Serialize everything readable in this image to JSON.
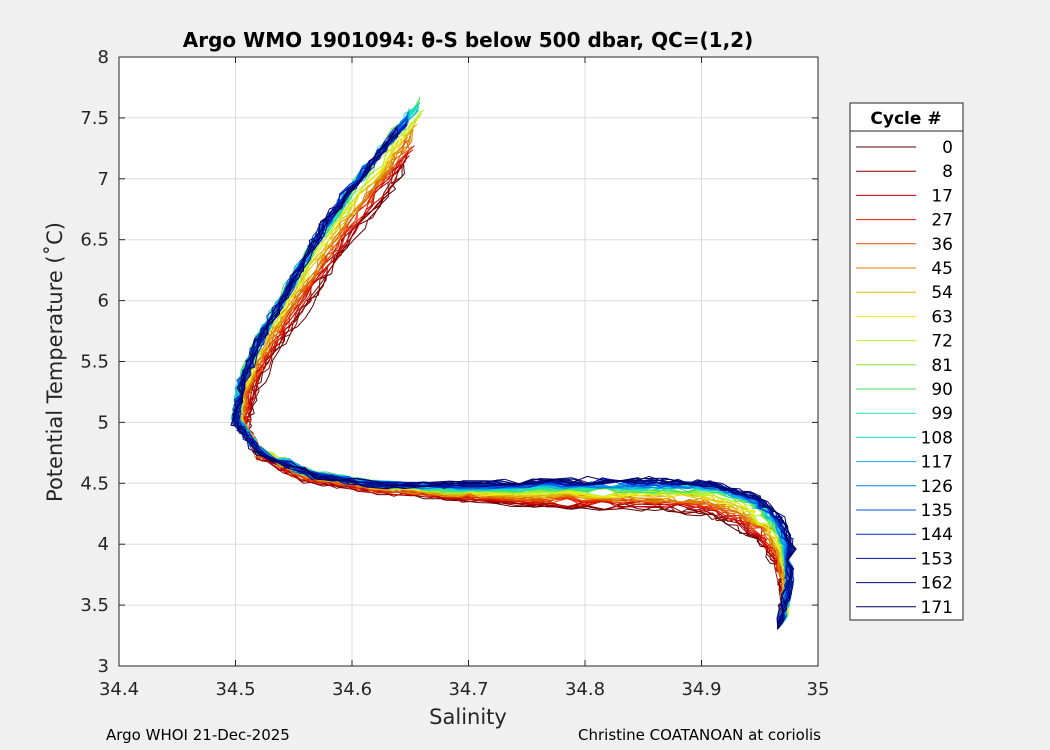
{
  "chart_data": {
    "type": "line",
    "title": "Argo WMO 1901094: θ-S below 500 dbar,  QC=(1,2)",
    "xlabel": "Salinity",
    "ylabel": "Potential Temperature (˚C)",
    "xlim": [
      34.4,
      35
    ],
    "ylim": [
      3,
      8
    ],
    "xticks": [
      "34.4",
      "34.5",
      "34.6",
      "34.7",
      "34.8",
      "34.9",
      "35"
    ],
    "yticks": [
      "3",
      "3.5",
      "4",
      "4.5",
      "5",
      "5.5",
      "6",
      "6.5",
      "7",
      "7.5",
      "8"
    ],
    "grid": true,
    "legend": {
      "title": "Cycle #",
      "placement": "outside-right",
      "entries": [
        "0",
        "8",
        "17",
        "27",
        "36",
        "45",
        "54",
        "63",
        "72",
        "81",
        "90",
        "99",
        "108",
        "117",
        "126",
        "135",
        "144",
        "153",
        "162",
        "171"
      ],
      "colors": [
        "#5a0000",
        "#8a0000",
        "#c00000",
        "#e21a00",
        "#e84a00",
        "#d98000",
        "#e0b800",
        "#ecec10",
        "#b4f030",
        "#7cea3c",
        "#40e060",
        "#20e8a0",
        "#10d8d8",
        "#10b0f0",
        "#0080f0",
        "#0050e0",
        "#0028c8",
        "#0010a0",
        "#000878",
        "#000060"
      ]
    },
    "series_representative": [
      {
        "name": "0",
        "x": [
          34.645,
          34.63,
          34.6,
          34.575,
          34.55,
          34.53,
          34.515,
          34.51,
          34.52,
          34.56,
          34.62,
          34.68,
          34.74,
          34.8,
          34.86,
          34.9,
          34.93,
          34.95,
          34.965,
          34.97,
          34.968
        ],
        "y": [
          7.1,
          6.85,
          6.5,
          6.15,
          5.8,
          5.5,
          5.2,
          4.95,
          4.7,
          4.52,
          4.43,
          4.38,
          4.33,
          4.3,
          4.3,
          4.25,
          4.15,
          4.0,
          3.8,
          3.6,
          3.35
        ]
      },
      {
        "name": "90",
        "x": [
          34.66,
          34.63,
          34.6,
          34.57,
          34.545,
          34.52,
          34.505,
          34.5,
          34.52,
          34.56,
          34.62,
          34.68,
          34.74,
          34.8,
          34.86,
          34.91,
          34.94,
          34.96,
          34.972,
          34.975,
          34.97
        ],
        "y": [
          7.65,
          7.3,
          6.9,
          6.5,
          6.1,
          5.7,
          5.35,
          5.05,
          4.78,
          4.6,
          4.5,
          4.45,
          4.45,
          4.45,
          4.45,
          4.45,
          4.35,
          4.2,
          4.0,
          3.7,
          3.35
        ]
      },
      {
        "name": "171",
        "x": [
          34.64,
          34.61,
          34.58,
          34.56,
          34.54,
          34.52,
          34.505,
          34.5,
          34.52,
          34.57,
          34.63,
          34.7,
          34.76,
          34.82,
          34.87,
          34.91,
          34.95,
          34.97,
          34.978,
          34.975,
          34.965
        ],
        "y": [
          7.4,
          7.05,
          6.7,
          6.35,
          6.0,
          5.65,
          5.3,
          5.0,
          4.75,
          4.55,
          4.48,
          4.5,
          4.52,
          4.53,
          4.53,
          4.5,
          4.38,
          4.2,
          3.95,
          3.65,
          3.3
        ]
      }
    ]
  },
  "footer": {
    "left": "Argo WHOI 21-Dec-2025",
    "right": "Christine COATANOAN at coriolis"
  }
}
